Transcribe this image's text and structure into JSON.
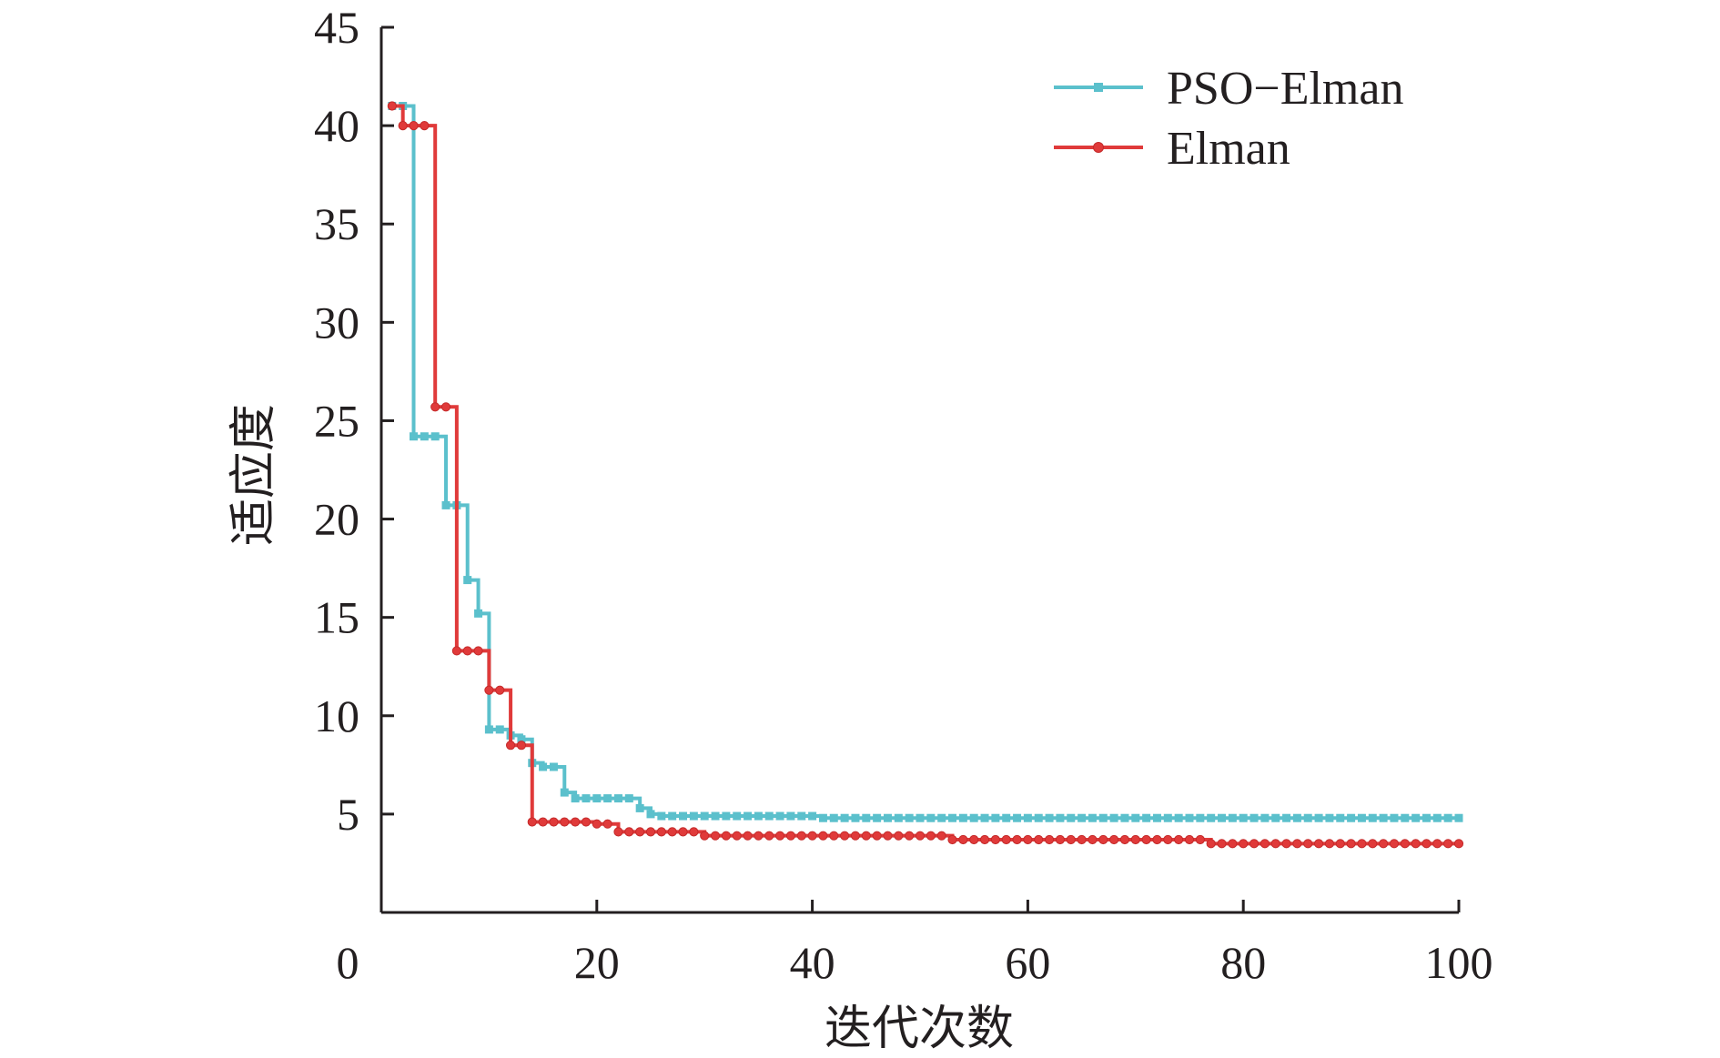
{
  "chart_data": {
    "type": "line",
    "title": "",
    "xlabel": "迭代次数",
    "ylabel": "适应度",
    "xlim": [
      0,
      100
    ],
    "ylim": [
      0,
      45
    ],
    "x_ticks": [
      20,
      40,
      60,
      80,
      100
    ],
    "y_ticks": [
      5,
      10,
      15,
      20,
      25,
      30,
      35,
      40,
      45
    ],
    "origin_label": "0",
    "legend_position": "top-right",
    "grid": false,
    "step": true,
    "series": [
      {
        "name": "PSO−Elman",
        "color": "#5bc0cc",
        "marker": "square",
        "x": [
          1,
          2,
          3,
          4,
          5,
          6,
          7,
          8,
          9,
          10,
          11,
          12,
          13,
          14,
          15,
          16,
          17,
          18,
          19,
          20,
          21,
          22,
          23,
          24,
          25,
          26,
          27,
          28,
          29,
          30,
          31,
          32,
          33,
          34,
          35,
          36,
          37,
          38,
          39,
          40,
          41,
          42,
          43,
          44,
          45,
          46,
          47,
          48,
          49,
          50,
          51,
          52,
          53,
          54,
          55,
          56,
          57,
          58,
          59,
          60,
          61,
          62,
          63,
          64,
          65,
          66,
          67,
          68,
          69,
          70,
          71,
          72,
          73,
          74,
          75,
          76,
          77,
          78,
          79,
          80,
          81,
          82,
          83,
          84,
          85,
          86,
          87,
          88,
          89,
          90,
          91,
          92,
          93,
          94,
          95,
          96,
          97,
          98,
          99,
          100
        ],
        "values": [
          41.0,
          41.0,
          24.2,
          24.2,
          24.2,
          20.7,
          20.7,
          16.9,
          15.2,
          9.3,
          9.3,
          9.0,
          8.8,
          7.6,
          7.4,
          7.4,
          6.1,
          5.8,
          5.8,
          5.8,
          5.8,
          5.8,
          5.8,
          5.3,
          5.0,
          4.9,
          4.9,
          4.9,
          4.9,
          4.9,
          4.9,
          4.9,
          4.9,
          4.9,
          4.9,
          4.9,
          4.9,
          4.9,
          4.9,
          4.9,
          4.8,
          4.8,
          4.8,
          4.8,
          4.8,
          4.8,
          4.8,
          4.8,
          4.8,
          4.8,
          4.8,
          4.8,
          4.8,
          4.8,
          4.8,
          4.8,
          4.8,
          4.8,
          4.8,
          4.8,
          4.8,
          4.8,
          4.8,
          4.8,
          4.8,
          4.8,
          4.8,
          4.8,
          4.8,
          4.8,
          4.8,
          4.8,
          4.8,
          4.8,
          4.8,
          4.8,
          4.8,
          4.8,
          4.8,
          4.8,
          4.8,
          4.8,
          4.8,
          4.8,
          4.8,
          4.8,
          4.8,
          4.8,
          4.8,
          4.8,
          4.8,
          4.8,
          4.8,
          4.8,
          4.8,
          4.8,
          4.8,
          4.8,
          4.8,
          4.8
        ]
      },
      {
        "name": "Elman",
        "color": "#e03a3a",
        "marker": "circle",
        "x": [
          1,
          2,
          3,
          4,
          5,
          6,
          7,
          8,
          9,
          10,
          11,
          12,
          13,
          14,
          15,
          16,
          17,
          18,
          19,
          20,
          21,
          22,
          23,
          24,
          25,
          26,
          27,
          28,
          29,
          30,
          31,
          32,
          33,
          34,
          35,
          36,
          37,
          38,
          39,
          40,
          41,
          42,
          43,
          44,
          45,
          46,
          47,
          48,
          49,
          50,
          51,
          52,
          53,
          54,
          55,
          56,
          57,
          58,
          59,
          60,
          61,
          62,
          63,
          64,
          65,
          66,
          67,
          68,
          69,
          70,
          71,
          72,
          73,
          74,
          75,
          76,
          77,
          78,
          79,
          80,
          81,
          82,
          83,
          84,
          85,
          86,
          87,
          88,
          89,
          90,
          91,
          92,
          93,
          94,
          95,
          96,
          97,
          98,
          99,
          100
        ],
        "values": [
          41.0,
          40.0,
          40.0,
          40.0,
          25.7,
          25.7,
          13.3,
          13.3,
          13.3,
          11.3,
          11.3,
          8.5,
          8.5,
          4.6,
          4.6,
          4.6,
          4.6,
          4.6,
          4.6,
          4.5,
          4.5,
          4.1,
          4.1,
          4.1,
          4.1,
          4.1,
          4.1,
          4.1,
          4.1,
          3.9,
          3.9,
          3.9,
          3.9,
          3.9,
          3.9,
          3.9,
          3.9,
          3.9,
          3.9,
          3.9,
          3.9,
          3.9,
          3.9,
          3.9,
          3.9,
          3.9,
          3.9,
          3.9,
          3.9,
          3.9,
          3.9,
          3.9,
          3.7,
          3.7,
          3.7,
          3.7,
          3.7,
          3.7,
          3.7,
          3.7,
          3.7,
          3.7,
          3.7,
          3.7,
          3.7,
          3.7,
          3.7,
          3.7,
          3.7,
          3.7,
          3.7,
          3.7,
          3.7,
          3.7,
          3.7,
          3.7,
          3.5,
          3.5,
          3.5,
          3.5,
          3.5,
          3.5,
          3.5,
          3.5,
          3.5,
          3.5,
          3.5,
          3.5,
          3.5,
          3.5,
          3.5,
          3.5,
          3.5,
          3.5,
          3.5,
          3.5,
          3.5,
          3.5,
          3.5,
          3.5
        ]
      }
    ]
  }
}
